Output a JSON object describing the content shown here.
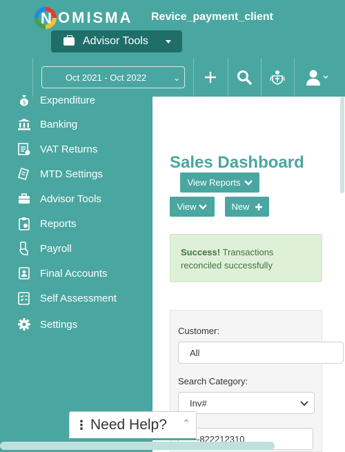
{
  "brand": {
    "logo_letter": "N",
    "logo_rest": "OMISMA",
    "client_name": "Revice_payment_client"
  },
  "header": {
    "advisor_tools_label": "Advisor Tools",
    "date_range": "Oct 2021 - Oct 2022",
    "icons": [
      "plus-icon",
      "search-icon",
      "crest-icon",
      "user-icon"
    ]
  },
  "sidebar": {
    "items": [
      {
        "label": "Expenditure",
        "icon": "money-bag-icon"
      },
      {
        "label": "Banking",
        "icon": "bank-icon"
      },
      {
        "label": "VAT Returns",
        "icon": "vat-icon"
      },
      {
        "label": "MTD Settings",
        "icon": "receipt-icon"
      },
      {
        "label": "Advisor Tools",
        "icon": "briefcase-icon"
      },
      {
        "label": "Reports",
        "icon": "clipboard-icon"
      },
      {
        "label": "Payroll",
        "icon": "hand-money-icon"
      },
      {
        "label": "Final Accounts",
        "icon": "account-book-icon"
      },
      {
        "label": "Self Assessment",
        "icon": "checklist-icon"
      },
      {
        "label": "Settings",
        "icon": "gear-icon"
      }
    ]
  },
  "main": {
    "title": "Sales Dashboard",
    "view_reports_label": "View Reports",
    "view_label": "View",
    "new_label": "New",
    "alert": {
      "strong": "Success!",
      "text": "Transactions reconciled successfully"
    },
    "filters": {
      "customer_label": "Customer:",
      "customer_value": "All",
      "category_label": "Search Category:",
      "category_value": "Inv#",
      "search_value": "-822212310"
    }
  },
  "help": {
    "label": "Need Help?"
  },
  "colors": {
    "teal": "#4aa6a0",
    "dark_teal": "#1f6e6a",
    "success_bg": "#dff0d8"
  }
}
